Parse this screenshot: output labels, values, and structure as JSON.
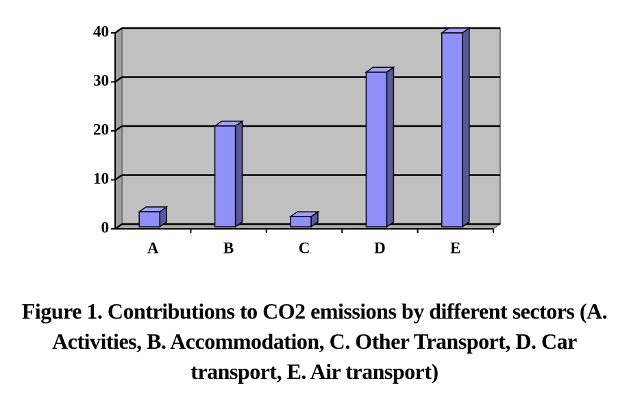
{
  "chart_data": {
    "type": "bar3d",
    "categories": [
      "A",
      "B",
      "C",
      "D",
      "E"
    ],
    "values": [
      3.5,
      21,
      2.5,
      32,
      40
    ],
    "color": "#8f8ff8",
    "ylim": [
      0,
      40
    ],
    "yticks": [
      0,
      10,
      20,
      30,
      40
    ],
    "grid": true,
    "caption": "Figure 1. Contributions to CO2 emissions by different sectors (A. Activities, B. Accommodation, C. Other Transport, D. Car transport, E. Air transport)"
  }
}
